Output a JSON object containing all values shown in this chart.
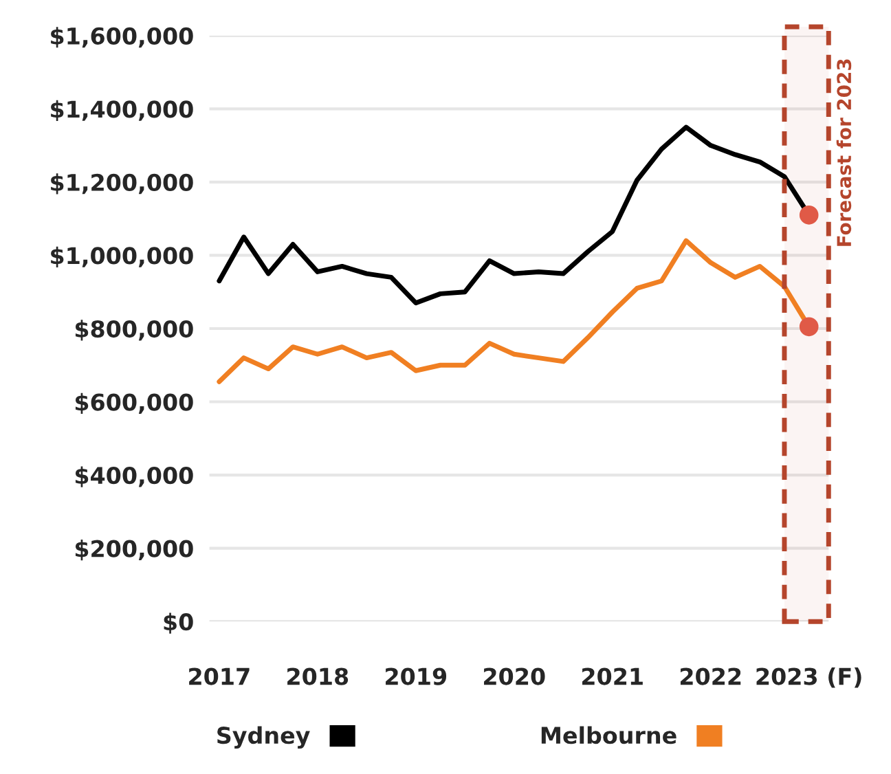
{
  "chart_data": {
    "type": "line",
    "x": [
      2017,
      2017.25,
      2017.5,
      2017.75,
      2018,
      2018.25,
      2018.5,
      2018.75,
      2019,
      2019.25,
      2019.5,
      2019.75,
      2020,
      2020.25,
      2020.5,
      2020.75,
      2021,
      2021.25,
      2021.5,
      2021.75,
      2022,
      2022.25,
      2022.5,
      2022.75,
      2023
    ],
    "series": [
      {
        "name": "Sydney",
        "color": "#000000",
        "values": [
          930000,
          1050000,
          950000,
          1030000,
          955000,
          970000,
          950000,
          940000,
          870000,
          895000,
          900000,
          985000,
          950000,
          955000,
          950000,
          1010000,
          1065000,
          1205000,
          1290000,
          1350000,
          1300000,
          1275000,
          1255000,
          1215000,
          1110000
        ]
      },
      {
        "name": "Melbourne",
        "color": "#f07f22",
        "values": [
          655000,
          720000,
          690000,
          750000,
          730000,
          750000,
          720000,
          735000,
          685000,
          700000,
          700000,
          760000,
          730000,
          720000,
          710000,
          775000,
          845000,
          910000,
          930000,
          1040000,
          980000,
          940000,
          970000,
          915000,
          805000
        ]
      },
      {
        "type": "scatter",
        "color": "#e05a47",
        "x": [
          2023,
          2023
        ],
        "values": [
          1110000,
          805000
        ],
        "marker": "circle"
      }
    ],
    "xlim": [
      2016.9,
      2023.2
    ],
    "xticks": [
      2017,
      2018,
      2019,
      2020,
      2021,
      2022,
      {
        "value": 2023,
        "label": "2023 (F)"
      }
    ],
    "ylim": [
      0,
      1600000
    ],
    "yticks": [
      {
        "value": 0,
        "label": "$0"
      },
      {
        "value": 200000,
        "label": "$200,000"
      },
      {
        "value": 400000,
        "label": "$400,000"
      },
      {
        "value": 600000,
        "label": "$600,000"
      },
      {
        "value": 800000,
        "label": "$800,000"
      },
      {
        "value": 1000000,
        "label": "$1,000,000"
      },
      {
        "value": 1200000,
        "label": "$1,200,000"
      },
      {
        "value": 1400000,
        "label": "$1,400,000"
      },
      {
        "value": 1600000,
        "label": "$1,600,000"
      }
    ],
    "bands": [
      {
        "axis": "x",
        "from": 2022.75,
        "to": 2023.2,
        "label": "Forecast for 2023",
        "color": "#b5452c"
      }
    ],
    "grid": "y",
    "legend": "bottom"
  }
}
